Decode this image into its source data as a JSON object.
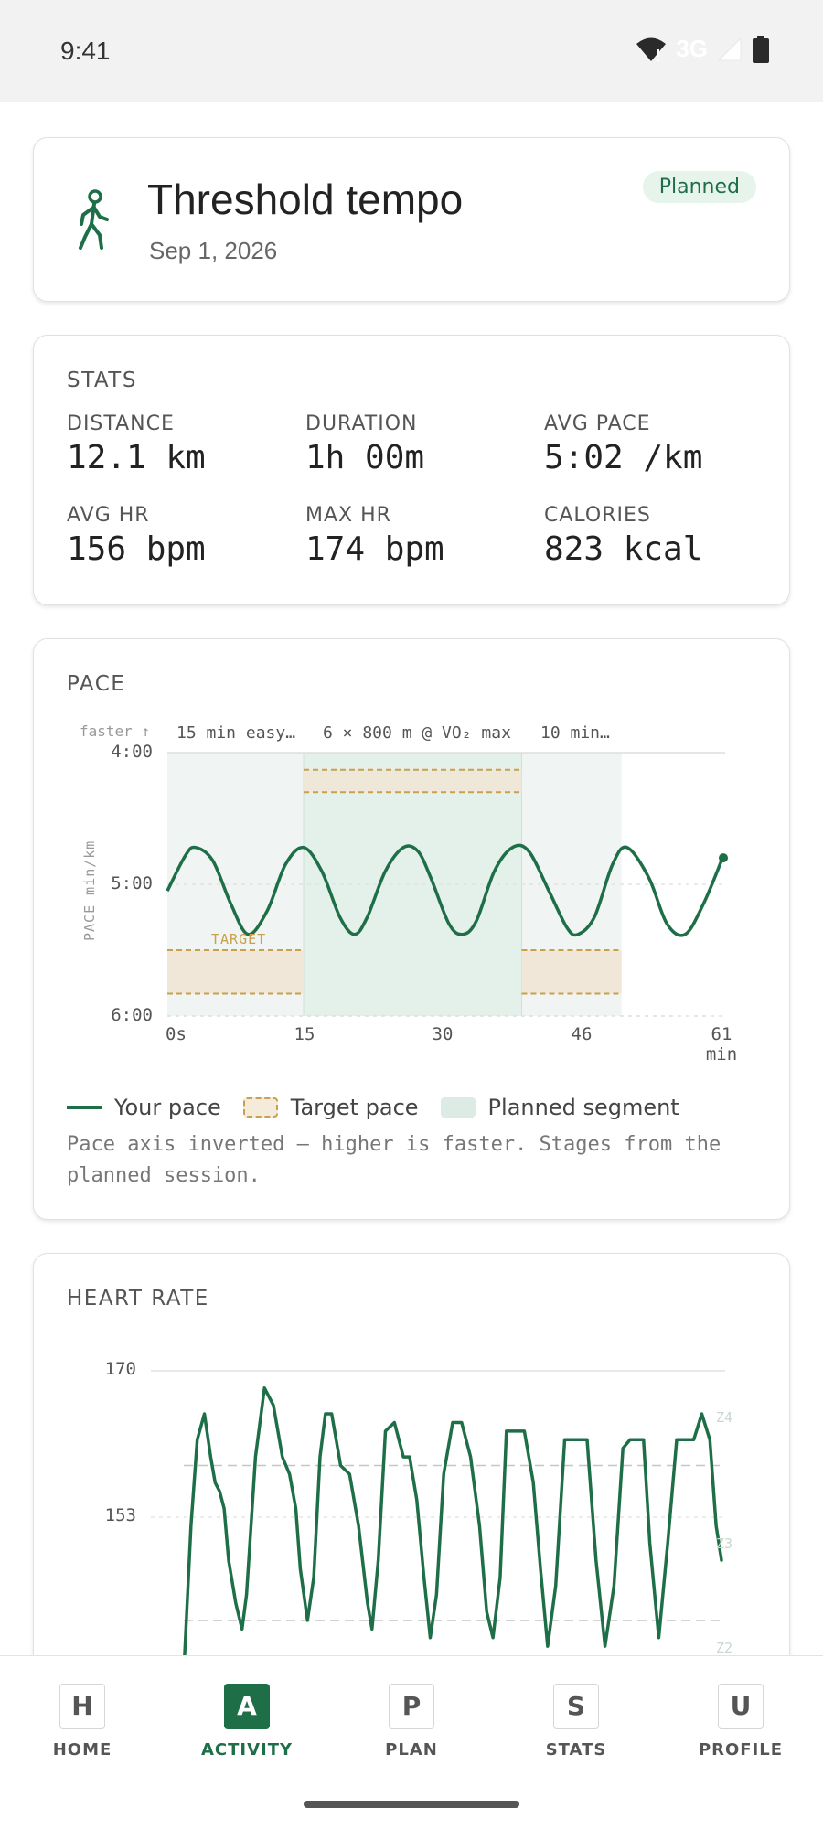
{
  "status_bar": {
    "time": "9:41",
    "network": "3G"
  },
  "header": {
    "title": "Threshold tempo",
    "date": "Sep 1, 2026",
    "badge": "Planned",
    "icon": "walking-person-icon"
  },
  "stats": {
    "title": "STATS",
    "items": [
      {
        "label": "DISTANCE",
        "value": "12.1 km"
      },
      {
        "label": "DURATION",
        "value": "1h 00m"
      },
      {
        "label": "AVG PACE",
        "value": "5:02 /km"
      },
      {
        "label": "AVG HR",
        "value": "156 bpm"
      },
      {
        "label": "MAX HR",
        "value": "174 bpm"
      },
      {
        "label": "CALORIES",
        "value": "823 kcal"
      }
    ]
  },
  "pace": {
    "title": "PACE",
    "faster_label": "faster ↑",
    "axis_label": "PACE min/km",
    "target_label": "TARGET",
    "segments": [
      "15 min easy…",
      "6 × 800 m @ VO₂ max",
      "10 min…"
    ],
    "y_ticks": [
      "4:00",
      "5:00",
      "6:00"
    ],
    "x_ticks": [
      "0s",
      "15",
      "30",
      "46",
      "61"
    ],
    "x_unit": "min",
    "legend": {
      "your_pace": "Your pace",
      "target_pace": "Target pace",
      "planned_segment": "Planned segment"
    },
    "note": "Pace axis inverted — higher is faster. Stages from the planned session."
  },
  "heart_rate": {
    "title": "HEART RATE",
    "y_ticks": [
      "170",
      "153"
    ],
    "zone_labels": [
      "Z4",
      "Z3",
      "Z2"
    ]
  },
  "chart_data": [
    {
      "type": "line",
      "title": "PACE",
      "ylabel": "PACE min/km",
      "xlabel": "min",
      "x_ticks": [
        0,
        15,
        30,
        46,
        61
      ],
      "ylim": [
        4.0,
        6.0
      ],
      "y_inverted": true,
      "target_zones": [
        {
          "from": 0,
          "to": 15,
          "pace_min": 5.5,
          "pace_max": 5.83
        },
        {
          "from": 15,
          "to": 39,
          "pace_min": 4.13,
          "pace_max": 4.3
        },
        {
          "from": 39,
          "to": 50,
          "pace_min": 5.5,
          "pace_max": 5.83
        }
      ],
      "planned_segments": [
        {
          "from": 0,
          "to": 15,
          "label": "15 min easy…"
        },
        {
          "from": 15,
          "to": 39,
          "label": "6 × 800 m @ VO₂ max"
        },
        {
          "from": 39,
          "to": 50,
          "label": "10 min…"
        }
      ],
      "series": [
        {
          "name": "Your pace",
          "x": [
            0,
            2,
            3.1,
            5,
            7,
            8.9,
            11,
            13,
            15,
            17,
            19,
            20.6,
            22,
            24,
            26,
            27.6,
            29,
            31,
            32.5,
            34,
            36,
            38,
            39.8,
            42,
            44,
            45.2,
            47,
            49,
            50.6,
            53,
            55,
            57,
            59,
            61
          ],
          "values": [
            5.05,
            4.78,
            4.72,
            4.82,
            5.15,
            5.38,
            5.2,
            4.85,
            4.72,
            4.9,
            5.25,
            5.38,
            5.25,
            4.9,
            4.72,
            4.75,
            4.95,
            5.3,
            5.38,
            5.28,
            4.9,
            4.72,
            4.75,
            5.05,
            5.33,
            5.38,
            5.25,
            4.85,
            4.72,
            4.95,
            5.3,
            5.38,
            5.15,
            4.82
          ]
        }
      ]
    },
    {
      "type": "line",
      "title": "HEART RATE",
      "y_ticks": [
        170,
        153
      ],
      "zone_thresholds": [
        159,
        141
      ],
      "series": [
        {
          "name": "Heart rate",
          "x": [
            0,
            0.8,
            1.5,
            2.3,
            3,
            3.5,
            4,
            4.5,
            5,
            5.8,
            6.5,
            7,
            8,
            9,
            10,
            11,
            11.8,
            12.5,
            13,
            13.8,
            14.5,
            15.2,
            15.8,
            16.5,
            17.5,
            18.5,
            19.5,
            20.5,
            21,
            21.7,
            22.5,
            23.5,
            24.5,
            25.2,
            26,
            26.8,
            27.5,
            28.2,
            29,
            30,
            31,
            32,
            33,
            33.8,
            34.5,
            35.3,
            36,
            37,
            38,
            39,
            39.8,
            40.6,
            41.5,
            42.5,
            43.4,
            44.2,
            45,
            46,
            47,
            48,
            49,
            49.8,
            50.5,
            51.3,
            52,
            53,
            54,
            55,
            56,
            56.9,
            57.8,
            58.7,
            59.4,
            60
          ],
          "values": [
            135,
            152,
            162,
            165,
            160,
            157,
            156,
            154,
            148,
            143,
            140,
            144,
            160,
            168,
            166,
            160,
            158,
            154,
            147,
            141,
            146,
            160,
            165,
            165,
            159,
            158,
            152,
            143,
            140,
            148,
            163,
            164,
            160,
            160,
            155,
            146,
            139,
            144,
            158,
            164,
            164,
            160,
            152,
            142,
            139,
            146,
            163,
            163,
            163,
            157,
            147,
            138,
            145,
            162,
            162,
            162,
            162,
            148,
            138,
            145,
            161,
            162,
            162,
            162,
            150,
            139,
            150,
            162,
            162,
            162,
            165,
            162,
            152,
            148
          ]
        }
      ]
    }
  ]
}
